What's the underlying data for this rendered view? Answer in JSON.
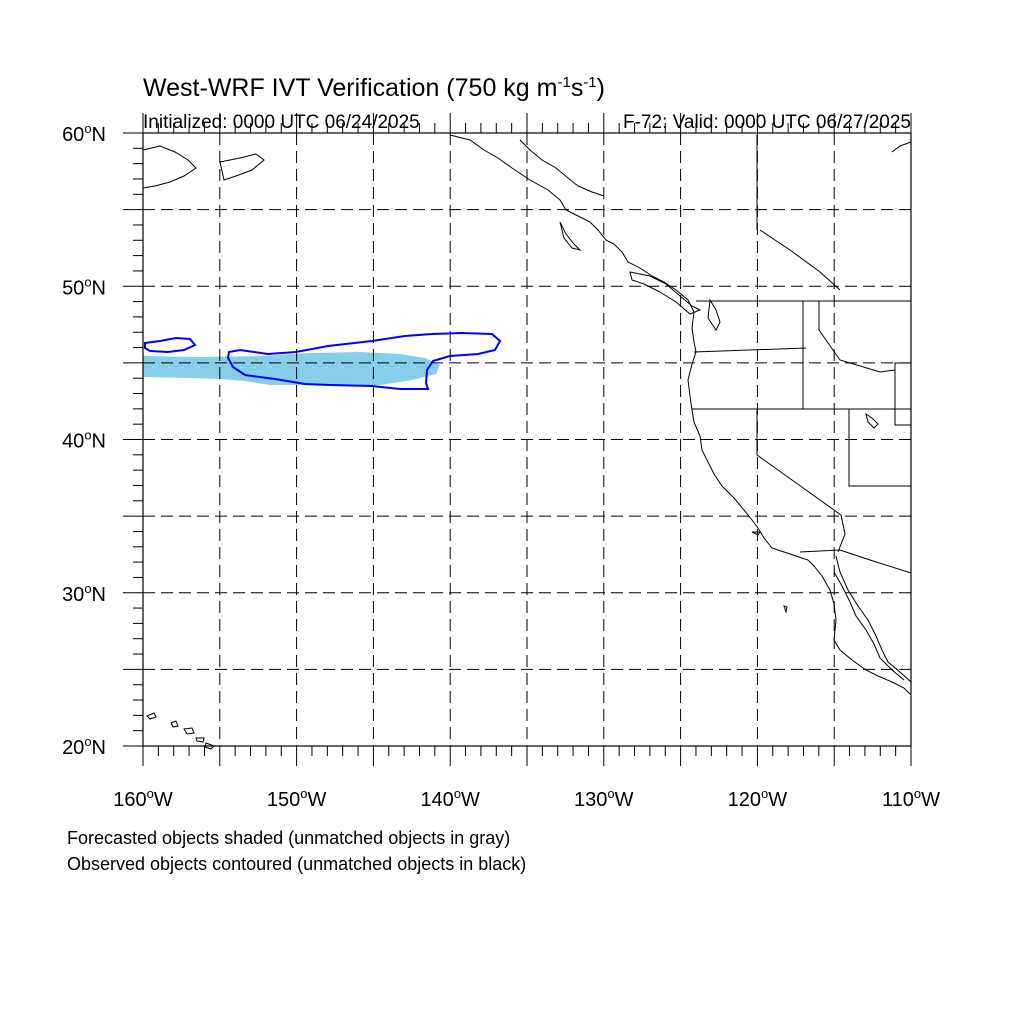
{
  "title": "West-WRF IVT Verification (750 kg m",
  "title_sup1": "-1",
  "title_mid": "s",
  "title_sup2": "-1",
  "title_end": ")",
  "initialized": "Initialized: 0000 UTC 06/24/2025",
  "valid": "F-72: Valid: 0000 UTC 06/27/2025",
  "lat_labels": [
    "60",
    "50",
    "40",
    "30",
    "20"
  ],
  "lon_labels": [
    "160",
    "150",
    "140",
    "130",
    "120",
    "110"
  ],
  "degree_symbol": "o",
  "lat_suffix": "N",
  "lon_suffix": "W",
  "caption_line1": "Forecasted objects shaded (unmatched objects in gray)",
  "caption_line2": "Observed objects contoured (unmatched objects in black)",
  "map_extent": {
    "lon_min": -160,
    "lon_max": -110,
    "lat_min": 20,
    "lat_max": 60
  },
  "colors": {
    "forecast_fill": "#87ceeb",
    "observed_contour": "#0000ff",
    "coastline": "#000000",
    "grid": "#000000"
  },
  "forecast_object": {
    "shape": "shaded-band",
    "lat_range": [
      43.8,
      45.5
    ],
    "lon_range": [
      -160,
      -140.5
    ]
  },
  "observed_objects": [
    {
      "shape": "contour",
      "label": "small-west"
    },
    {
      "shape": "contour",
      "label": "main-band"
    }
  ]
}
